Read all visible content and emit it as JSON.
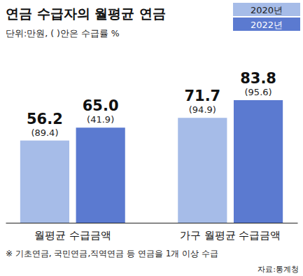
{
  "chart_data": {
    "type": "bar",
    "title": "연금 수급자의 월평균 연금",
    "subtitle": "단위:만원, ( )안은 수급률 %",
    "categories": [
      "월평균 수급금액",
      "가구 월평균 수급금액"
    ],
    "series": [
      {
        "name": "2020년",
        "color": "#a6bce8",
        "values": [
          56.2,
          71.7
        ],
        "value_labels": [
          "56.2",
          "71.7"
        ],
        "rate_labels": [
          "(89.4)",
          "(94.9)"
        ]
      },
      {
        "name": "2022년",
        "color": "#5b7ad0",
        "values": [
          65.0,
          83.8
        ],
        "value_labels": [
          "65.0",
          "83.8"
        ],
        "rate_labels": [
          "(41.9)",
          "(95.6)"
        ]
      }
    ],
    "ylim": [
      0,
      90
    ],
    "tick_labels": "x",
    "data_labels": true,
    "legend": "top-right",
    "note": "※ 기초연금, 국민연금,직역연금 등 연금을 1개 이상 수급",
    "source": "자료:통계청"
  }
}
